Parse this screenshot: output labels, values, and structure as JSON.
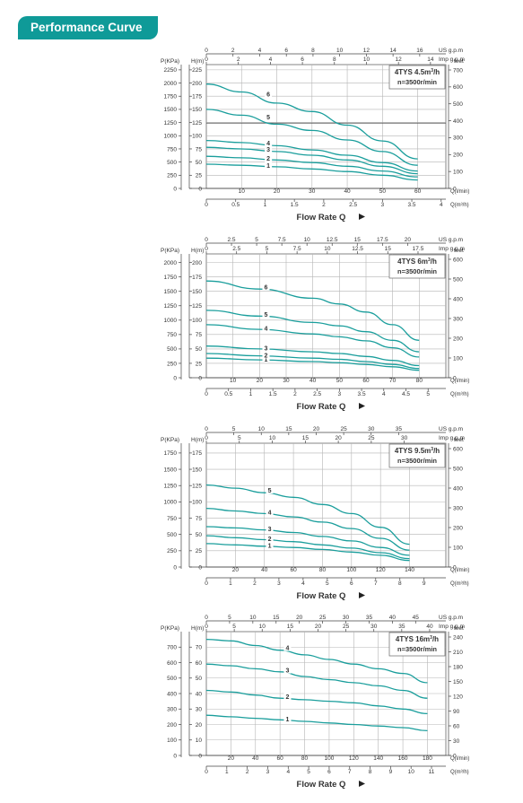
{
  "header": {
    "title": "Performance Curve"
  },
  "colors": {
    "curve": "#1a9e9c",
    "banner": "#0f9a98",
    "grid": "#b5b5b5",
    "axis": "#333333"
  },
  "chart_data": [
    {
      "type": "line",
      "model": "4TYS 4.5m",
      "model_sup": "3",
      "model_unit": "/h",
      "speed": "n=3500r/min",
      "xlabel": "Flow Rate Q",
      "axes_labels": {
        "kpa": "P(KPa)",
        "h": "H(m)",
        "feet": "feet",
        "us": "US g.p.m",
        "imp": "Imp g.p.m",
        "ql": "Q(l/min)",
        "qm": "Q(m³/h)"
      },
      "x_lmin": {
        "lim": [
          0,
          68
        ],
        "ticks": [
          10,
          20,
          30,
          40,
          50,
          60
        ]
      },
      "x_m3h": {
        "lim": [
          0,
          4.08
        ],
        "ticks": [
          0,
          0.5,
          1,
          1.5,
          2,
          2.5,
          3,
          3.5,
          4
        ]
      },
      "x_us": {
        "lim": [
          0,
          17.96
        ],
        "ticks": [
          0,
          2,
          4,
          6,
          8,
          10,
          12,
          14,
          16
        ]
      },
      "x_imp": {
        "lim": [
          0,
          14.96
        ],
        "ticks": [
          0,
          2,
          4,
          6,
          8,
          10,
          12,
          14
        ]
      },
      "y_h": {
        "lim": [
          -1,
          235
        ],
        "ticks": [
          0,
          25,
          50,
          75,
          100,
          125,
          150,
          175,
          200,
          225
        ]
      },
      "y_kpa": {
        "ticks": [
          0,
          250,
          500,
          750,
          1000,
          1250,
          1500,
          1750,
          2000,
          2250
        ]
      },
      "y_feet": {
        "ticks": [
          0,
          100,
          200,
          300,
          400,
          500,
          600,
          700
        ]
      },
      "hline": 124,
      "series": [
        {
          "name": "1",
          "label_x": 12,
          "x": [
            0,
            10,
            20,
            30,
            40,
            50,
            60
          ],
          "y": [
            46,
            44,
            41,
            37,
            32,
            25,
            16
          ]
        },
        {
          "name": "2",
          "label_x": 12,
          "x": [
            0,
            10,
            20,
            30,
            40,
            50,
            60
          ],
          "y": [
            61,
            58,
            54,
            49,
            42,
            33,
            22
          ]
        },
        {
          "name": "3",
          "label_x": 12,
          "x": [
            0,
            10,
            20,
            30,
            40,
            50,
            60
          ],
          "y": [
            78,
            75,
            70,
            63,
            54,
            42,
            28
          ]
        },
        {
          "name": "4",
          "label_x": 12,
          "x": [
            0,
            10,
            20,
            30,
            40,
            50,
            60
          ],
          "y": [
            91,
            87,
            81,
            73,
            63,
            49,
            33
          ]
        },
        {
          "name": "5",
          "label_x": 12,
          "x": [
            0,
            10,
            20,
            30,
            40,
            50,
            60
          ],
          "y": [
            150,
            139,
            122,
            110,
            92,
            70,
            44
          ]
        },
        {
          "name": "6",
          "label_x": 12,
          "x": [
            0,
            10,
            20,
            30,
            40,
            50,
            60
          ],
          "y": [
            198,
            183,
            162,
            146,
            120,
            90,
            56
          ]
        }
      ]
    },
    {
      "type": "line",
      "model": "4TYS 6m",
      "model_sup": "3",
      "model_unit": "/h",
      "speed": "n=3500r/min",
      "xlabel": "Flow Rate Q",
      "axes_labels": {
        "kpa": "P(KPa)",
        "h": "H(m)",
        "feet": "feet",
        "us": "US g.p.m",
        "imp": "Imp g.p.m",
        "ql": "Q(l/min)",
        "qm": "Q(m³/h)"
      },
      "x_lmin": {
        "lim": [
          0,
          90
        ],
        "ticks": [
          10,
          20,
          30,
          40,
          50,
          60,
          70,
          80
        ]
      },
      "x_m3h": {
        "lim": [
          0,
          5.4
        ],
        "ticks": [
          0,
          0.5,
          1,
          1.5,
          2,
          2.5,
          3,
          3.5,
          4,
          4.5,
          5
        ]
      },
      "x_us": {
        "lim": [
          0,
          23.8
        ],
        "ticks": [
          0,
          2.5,
          5,
          7.5,
          10,
          12.5,
          15,
          17.5,
          20
        ]
      },
      "x_imp": {
        "lim": [
          0,
          19.8
        ],
        "ticks": [
          0,
          2.5,
          5,
          7.5,
          10,
          12.5,
          15,
          17.5
        ]
      },
      "y_h": {
        "lim": [
          -1,
          215
        ],
        "ticks": [
          0,
          25,
          50,
          75,
          100,
          125,
          150,
          175,
          200
        ]
      },
      "y_kpa": {
        "ticks": [
          0,
          250,
          500,
          750,
          1000,
          1250,
          1500,
          1750,
          2000
        ]
      },
      "y_feet": {
        "ticks": [
          0,
          100,
          200,
          300,
          400,
          500,
          600
        ]
      },
      "hline": null,
      "series": [
        {
          "name": "1",
          "label_x": 15,
          "x": [
            0,
            20,
            40,
            50,
            60,
            70,
            80
          ],
          "y": [
            34,
            31,
            28,
            26,
            23,
            19,
            13
          ]
        },
        {
          "name": "2",
          "label_x": 15,
          "x": [
            0,
            20,
            40,
            50,
            60,
            70,
            80
          ],
          "y": [
            42,
            38,
            34,
            32,
            28,
            23,
            16
          ]
        },
        {
          "name": "3",
          "label_x": 15,
          "x": [
            0,
            20,
            40,
            50,
            60,
            70,
            80
          ],
          "y": [
            55,
            50,
            45,
            42,
            37,
            30,
            21
          ]
        },
        {
          "name": "4",
          "label_x": 15,
          "x": [
            0,
            20,
            40,
            50,
            60,
            70,
            80
          ],
          "y": [
            92,
            84,
            76,
            71,
            64,
            52,
            36
          ]
        },
        {
          "name": "5",
          "label_x": 15,
          "x": [
            0,
            20,
            40,
            50,
            60,
            70,
            80
          ],
          "y": [
            117,
            107,
            96,
            90,
            80,
            65,
            45
          ]
        },
        {
          "name": "6",
          "label_x": 15,
          "x": [
            0,
            20,
            40,
            50,
            60,
            70,
            80
          ],
          "y": [
            168,
            154,
            138,
            128,
            114,
            92,
            65
          ]
        }
      ]
    },
    {
      "type": "line",
      "model": "4TYS 9.5m",
      "model_sup": "3",
      "model_unit": "/h",
      "speed": "n=3500r/min",
      "xlabel": "Flow Rate Q",
      "axes_labels": {
        "kpa": "P(KPa)",
        "h": "H(m)",
        "feet": "feet",
        "us": "US g.p.m",
        "imp": "Imp g.p.m",
        "ql": "Q(l/min)",
        "qm": "Q(m³/h)"
      },
      "x_lmin": {
        "lim": [
          0,
          165
        ],
        "ticks": [
          20,
          40,
          60,
          80,
          100,
          120,
          140
        ]
      },
      "x_m3h": {
        "lim": [
          0,
          9.9
        ],
        "ticks": [
          0,
          1,
          2,
          3,
          4,
          5,
          6,
          7,
          8,
          9
        ]
      },
      "x_us": {
        "lim": [
          0,
          43.6
        ],
        "ticks": [
          0,
          5,
          10,
          15,
          20,
          25,
          30,
          35
        ]
      },
      "x_imp": {
        "lim": [
          0,
          36.3
        ],
        "ticks": [
          0,
          5,
          10,
          15,
          20,
          25,
          30
        ]
      },
      "y_h": {
        "lim": [
          -1,
          190
        ],
        "ticks": [
          0,
          25,
          50,
          75,
          100,
          125,
          150,
          175
        ]
      },
      "y_kpa": {
        "ticks": [
          0,
          250,
          500,
          750,
          1000,
          1250,
          1500,
          1750
        ]
      },
      "y_feet": {
        "ticks": [
          0,
          100,
          200,
          300,
          400,
          500,
          600
        ]
      },
      "hline": null,
      "series": [
        {
          "name": "1",
          "label_x": 30,
          "x": [
            0,
            20,
            40,
            60,
            80,
            100,
            120,
            140
          ],
          "y": [
            36,
            34,
            32,
            30,
            27,
            23,
            18,
            10
          ]
        },
        {
          "name": "2",
          "label_x": 30,
          "x": [
            0,
            20,
            40,
            60,
            80,
            100,
            120,
            140
          ],
          "y": [
            48,
            45,
            42,
            39,
            34,
            29,
            22,
            13
          ]
        },
        {
          "name": "3",
          "label_x": 30,
          "x": [
            0,
            20,
            40,
            60,
            80,
            100,
            120,
            140
          ],
          "y": [
            62,
            60,
            57,
            53,
            47,
            40,
            30,
            18
          ]
        },
        {
          "name": "4",
          "label_x": 30,
          "x": [
            0,
            20,
            40,
            60,
            80,
            100,
            120,
            140
          ],
          "y": [
            90,
            86,
            82,
            77,
            69,
            59,
            44,
            26
          ]
        },
        {
          "name": "5",
          "label_x": 30,
          "x": [
            0,
            20,
            40,
            60,
            80,
            100,
            120,
            140
          ],
          "y": [
            126,
            121,
            114,
            107,
            96,
            82,
            61,
            35
          ]
        }
      ]
    },
    {
      "type": "line",
      "model": "4TYS 16m",
      "model_sup": "3",
      "model_unit": "/h",
      "speed": "n=3500r/min",
      "xlabel": "Flow Rate Q",
      "axes_labels": {
        "kpa": "P(KPa)",
        "h": "H(m)",
        "feet": "feet",
        "us": "US g.p.m",
        "imp": "Imp g.p.m",
        "ql": "Q(l/min)",
        "qm": "Q(m³/h)"
      },
      "x_lmin": {
        "lim": [
          0,
          195
        ],
        "ticks": [
          20,
          40,
          60,
          80,
          100,
          120,
          140,
          160,
          180
        ]
      },
      "x_m3h": {
        "lim": [
          0,
          11.7
        ],
        "ticks": [
          0,
          1,
          2,
          3,
          4,
          5,
          6,
          7,
          8,
          9,
          10,
          11
        ]
      },
      "x_us": {
        "lim": [
          0,
          51.5
        ],
        "ticks": [
          0,
          5,
          10,
          15,
          20,
          25,
          30,
          35,
          40,
          45
        ]
      },
      "x_imp": {
        "lim": [
          0,
          42.9
        ],
        "ticks": [
          0,
          5,
          10,
          15,
          20,
          25,
          30,
          35,
          40
        ]
      },
      "y_h": {
        "lim": [
          -1,
          80
        ],
        "ticks": [
          0,
          10,
          20,
          30,
          40,
          50,
          60,
          70
        ]
      },
      "y_kpa": {
        "ticks": [
          0,
          100,
          200,
          300,
          400,
          500,
          600,
          700
        ]
      },
      "y_feet": {
        "ticks": [
          0,
          30,
          60,
          90,
          120,
          150,
          180,
          210,
          240
        ]
      },
      "hline": null,
      "series": [
        {
          "name": "1",
          "label_x": 50,
          "x": [
            0,
            20,
            40,
            60,
            80,
            100,
            120,
            140,
            160,
            180
          ],
          "y": [
            26,
            25,
            24,
            23,
            22,
            21,
            20,
            19,
            18,
            16
          ]
        },
        {
          "name": "2",
          "label_x": 50,
          "x": [
            0,
            20,
            40,
            60,
            80,
            100,
            120,
            140,
            160,
            180
          ],
          "y": [
            42,
            41,
            39,
            37,
            36,
            35,
            34,
            32,
            30,
            27
          ]
        },
        {
          "name": "3",
          "label_x": 50,
          "x": [
            0,
            20,
            40,
            60,
            80,
            100,
            120,
            140,
            160,
            180
          ],
          "y": [
            59,
            58,
            56,
            54,
            51,
            49,
            47,
            45,
            42,
            37
          ]
        },
        {
          "name": "4",
          "label_x": 50,
          "x": [
            0,
            20,
            40,
            60,
            80,
            100,
            120,
            140,
            160,
            180
          ],
          "y": [
            75,
            74,
            71,
            68,
            65,
            62,
            59,
            56,
            53,
            47
          ]
        }
      ]
    }
  ]
}
